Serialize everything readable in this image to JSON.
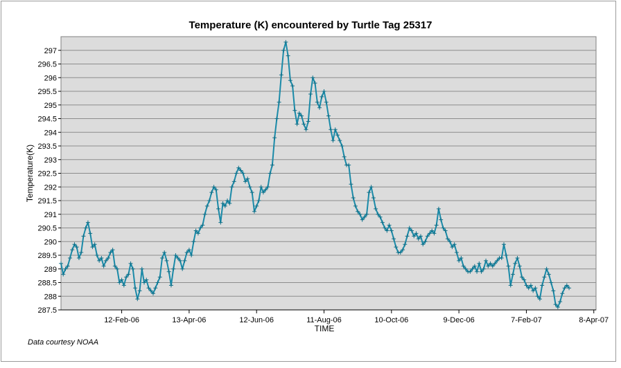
{
  "chart_data": {
    "type": "line",
    "title": "Temperature (K) encountered by Turtle Tag 25317",
    "xlabel": "TIME",
    "ylabel": "Temperature(K)",
    "credit": "Data courtesy NOAA",
    "ylim": [
      287.5,
      297.5
    ],
    "y_ticks": [
      "287.5",
      "288",
      "288.5",
      "289",
      "289.5",
      "290",
      "290.5",
      "291",
      "291.5",
      "292",
      "292.5",
      "293",
      "293.5",
      "294",
      "294.5",
      "295",
      "295.5",
      "296",
      "296.5",
      "297"
    ],
    "x_date_range": [
      "2005-12-20",
      "2007-04-10"
    ],
    "x_ticks": [
      {
        "date": "2006-02-12",
        "label": "12-Feb-06"
      },
      {
        "date": "2006-04-13",
        "label": "13-Apr-06"
      },
      {
        "date": "2006-06-12",
        "label": "12-Jun-06"
      },
      {
        "date": "2006-08-11",
        "label": "11-Aug-06"
      },
      {
        "date": "2006-10-10",
        "label": "10-Oct-06"
      },
      {
        "date": "2006-12-09",
        "label": "9-Dec-06"
      },
      {
        "date": "2007-02-07",
        "label": "7-Feb-07"
      },
      {
        "date": "2007-04-08",
        "label": "8-Apr-07"
      }
    ],
    "grid": true,
    "colors": {
      "line": "#1a8aa8",
      "plot_bg": "#dcdcdc",
      "grid": "#8c8c8c"
    },
    "series": [
      {
        "name": "Temperature",
        "marker": "plus",
        "points": [
          [
            "2005-12-20",
            289.2
          ],
          [
            "2005-12-22",
            288.8
          ],
          [
            "2005-12-24",
            289.0
          ],
          [
            "2005-12-26",
            289.1
          ],
          [
            "2005-12-28",
            289.4
          ],
          [
            "2005-12-30",
            289.7
          ],
          [
            "2006-01-01",
            289.9
          ],
          [
            "2006-01-03",
            289.8
          ],
          [
            "2006-01-05",
            289.4
          ],
          [
            "2006-01-07",
            289.6
          ],
          [
            "2006-01-09",
            290.2
          ],
          [
            "2006-01-11",
            290.5
          ],
          [
            "2006-01-13",
            290.7
          ],
          [
            "2006-01-15",
            290.3
          ],
          [
            "2006-01-17",
            289.8
          ],
          [
            "2006-01-19",
            289.9
          ],
          [
            "2006-01-21",
            289.5
          ],
          [
            "2006-01-23",
            289.3
          ],
          [
            "2006-01-25",
            289.4
          ],
          [
            "2006-01-27",
            289.1
          ],
          [
            "2006-01-29",
            289.3
          ],
          [
            "2006-01-31",
            289.4
          ],
          [
            "2006-02-02",
            289.6
          ],
          [
            "2006-02-04",
            289.7
          ],
          [
            "2006-02-06",
            289.1
          ],
          [
            "2006-02-08",
            289.0
          ],
          [
            "2006-02-10",
            288.5
          ],
          [
            "2006-02-12",
            288.6
          ],
          [
            "2006-02-14",
            288.4
          ],
          [
            "2006-02-16",
            288.7
          ],
          [
            "2006-02-18",
            288.8
          ],
          [
            "2006-02-20",
            289.2
          ],
          [
            "2006-02-22",
            289.0
          ],
          [
            "2006-02-24",
            288.3
          ],
          [
            "2006-02-26",
            287.9
          ],
          [
            "2006-02-28",
            288.2
          ],
          [
            "2006-03-02",
            289.0
          ],
          [
            "2006-03-04",
            288.5
          ],
          [
            "2006-03-06",
            288.6
          ],
          [
            "2006-03-08",
            288.3
          ],
          [
            "2006-03-10",
            288.2
          ],
          [
            "2006-03-12",
            288.1
          ],
          [
            "2006-03-14",
            288.3
          ],
          [
            "2006-03-16",
            288.5
          ],
          [
            "2006-03-18",
            288.7
          ],
          [
            "2006-03-20",
            289.4
          ],
          [
            "2006-03-22",
            289.6
          ],
          [
            "2006-03-24",
            289.3
          ],
          [
            "2006-03-26",
            288.9
          ],
          [
            "2006-03-28",
            288.4
          ],
          [
            "2006-03-30",
            289.0
          ],
          [
            "2006-04-01",
            289.5
          ],
          [
            "2006-04-03",
            289.4
          ],
          [
            "2006-04-05",
            289.3
          ],
          [
            "2006-04-07",
            289.0
          ],
          [
            "2006-04-09",
            289.3
          ],
          [
            "2006-04-11",
            289.6
          ],
          [
            "2006-04-13",
            289.7
          ],
          [
            "2006-04-15",
            289.5
          ],
          [
            "2006-04-17",
            290.0
          ],
          [
            "2006-04-19",
            290.4
          ],
          [
            "2006-04-21",
            290.3
          ],
          [
            "2006-04-23",
            290.5
          ],
          [
            "2006-04-25",
            290.6
          ],
          [
            "2006-04-27",
            291.0
          ],
          [
            "2006-04-29",
            291.3
          ],
          [
            "2006-05-01",
            291.5
          ],
          [
            "2006-05-03",
            291.8
          ],
          [
            "2006-05-05",
            292.0
          ],
          [
            "2006-05-07",
            291.9
          ],
          [
            "2006-05-09",
            291.2
          ],
          [
            "2006-05-11",
            290.7
          ],
          [
            "2006-05-13",
            291.4
          ],
          [
            "2006-05-15",
            291.3
          ],
          [
            "2006-05-17",
            291.5
          ],
          [
            "2006-05-19",
            291.4
          ],
          [
            "2006-05-21",
            292.0
          ],
          [
            "2006-05-23",
            292.2
          ],
          [
            "2006-05-25",
            292.5
          ],
          [
            "2006-05-27",
            292.7
          ],
          [
            "2006-05-29",
            292.6
          ],
          [
            "2006-05-31",
            292.5
          ],
          [
            "2006-06-02",
            292.2
          ],
          [
            "2006-06-04",
            292.3
          ],
          [
            "2006-06-06",
            292.0
          ],
          [
            "2006-06-08",
            291.8
          ],
          [
            "2006-06-10",
            291.1
          ],
          [
            "2006-06-12",
            291.3
          ],
          [
            "2006-06-14",
            291.5
          ],
          [
            "2006-06-16",
            292.0
          ],
          [
            "2006-06-18",
            291.8
          ],
          [
            "2006-06-20",
            291.9
          ],
          [
            "2006-06-22",
            292.0
          ],
          [
            "2006-06-24",
            292.5
          ],
          [
            "2006-06-26",
            292.8
          ],
          [
            "2006-06-28",
            293.8
          ],
          [
            "2006-06-30",
            294.5
          ],
          [
            "2006-07-02",
            295.1
          ],
          [
            "2006-07-04",
            296.1
          ],
          [
            "2006-07-06",
            297.0
          ],
          [
            "2006-07-08",
            297.3
          ],
          [
            "2006-07-10",
            296.8
          ],
          [
            "2006-07-12",
            295.9
          ],
          [
            "2006-07-14",
            295.7
          ],
          [
            "2006-07-16",
            294.8
          ],
          [
            "2006-07-18",
            294.3
          ],
          [
            "2006-07-20",
            294.7
          ],
          [
            "2006-07-22",
            294.6
          ],
          [
            "2006-07-24",
            294.3
          ],
          [
            "2006-07-26",
            294.1
          ],
          [
            "2006-07-28",
            294.4
          ],
          [
            "2006-07-30",
            295.4
          ],
          [
            "2006-08-01",
            296.0
          ],
          [
            "2006-08-03",
            295.8
          ],
          [
            "2006-08-05",
            295.1
          ],
          [
            "2006-08-07",
            294.9
          ],
          [
            "2006-08-09",
            295.3
          ],
          [
            "2006-08-11",
            295.5
          ],
          [
            "2006-08-13",
            295.1
          ],
          [
            "2006-08-15",
            294.6
          ],
          [
            "2006-08-17",
            294.1
          ],
          [
            "2006-08-19",
            293.7
          ],
          [
            "2006-08-21",
            294.1
          ],
          [
            "2006-08-23",
            293.9
          ],
          [
            "2006-08-25",
            293.7
          ],
          [
            "2006-08-27",
            293.5
          ],
          [
            "2006-08-29",
            293.1
          ],
          [
            "2006-08-31",
            292.8
          ],
          [
            "2006-09-02",
            292.8
          ],
          [
            "2006-09-04",
            292.1
          ],
          [
            "2006-09-06",
            291.6
          ],
          [
            "2006-09-08",
            291.3
          ],
          [
            "2006-09-10",
            291.1
          ],
          [
            "2006-09-12",
            291.0
          ],
          [
            "2006-09-14",
            290.8
          ],
          [
            "2006-09-16",
            290.9
          ],
          [
            "2006-09-18",
            291.0
          ],
          [
            "2006-09-20",
            291.8
          ],
          [
            "2006-09-22",
            292.0
          ],
          [
            "2006-09-24",
            291.6
          ],
          [
            "2006-09-26",
            291.2
          ],
          [
            "2006-09-28",
            291.0
          ],
          [
            "2006-09-30",
            290.9
          ],
          [
            "2006-10-02",
            290.7
          ],
          [
            "2006-10-04",
            290.5
          ],
          [
            "2006-10-06",
            290.4
          ],
          [
            "2006-10-08",
            290.6
          ],
          [
            "2006-10-10",
            290.4
          ],
          [
            "2006-10-12",
            290.1
          ],
          [
            "2006-10-14",
            289.8
          ],
          [
            "2006-10-16",
            289.6
          ],
          [
            "2006-10-18",
            289.6
          ],
          [
            "2006-10-20",
            289.7
          ],
          [
            "2006-10-22",
            289.9
          ],
          [
            "2006-10-24",
            290.2
          ],
          [
            "2006-10-26",
            290.5
          ],
          [
            "2006-10-28",
            290.4
          ],
          [
            "2006-10-30",
            290.2
          ],
          [
            "2006-11-01",
            290.3
          ],
          [
            "2006-11-03",
            290.1
          ],
          [
            "2006-11-05",
            290.2
          ],
          [
            "2006-11-07",
            289.9
          ],
          [
            "2006-11-09",
            290.0
          ],
          [
            "2006-11-11",
            290.2
          ],
          [
            "2006-11-13",
            290.3
          ],
          [
            "2006-11-15",
            290.4
          ],
          [
            "2006-11-17",
            290.3
          ],
          [
            "2006-11-19",
            290.6
          ],
          [
            "2006-11-21",
            291.2
          ],
          [
            "2006-11-23",
            290.8
          ],
          [
            "2006-11-25",
            290.5
          ],
          [
            "2006-11-27",
            290.4
          ],
          [
            "2006-11-29",
            290.1
          ],
          [
            "2006-12-01",
            290.0
          ],
          [
            "2006-12-03",
            289.8
          ],
          [
            "2006-12-05",
            289.9
          ],
          [
            "2006-12-07",
            289.6
          ],
          [
            "2006-12-09",
            289.3
          ],
          [
            "2006-12-11",
            289.4
          ],
          [
            "2006-12-13",
            289.1
          ],
          [
            "2006-12-15",
            289.0
          ],
          [
            "2006-12-17",
            288.9
          ],
          [
            "2006-12-19",
            288.9
          ],
          [
            "2006-12-21",
            289.0
          ],
          [
            "2006-12-23",
            289.1
          ],
          [
            "2006-12-25",
            288.9
          ],
          [
            "2006-12-27",
            289.2
          ],
          [
            "2006-12-29",
            288.9
          ],
          [
            "2006-12-31",
            289.0
          ],
          [
            "2007-01-02",
            289.3
          ],
          [
            "2007-01-04",
            289.1
          ],
          [
            "2007-01-06",
            289.2
          ],
          [
            "2007-01-08",
            289.1
          ],
          [
            "2007-01-10",
            289.2
          ],
          [
            "2007-01-12",
            289.3
          ],
          [
            "2007-01-14",
            289.4
          ],
          [
            "2007-01-16",
            289.4
          ],
          [
            "2007-01-18",
            289.9
          ],
          [
            "2007-01-20",
            289.5
          ],
          [
            "2007-01-22",
            289.1
          ],
          [
            "2007-01-24",
            288.4
          ],
          [
            "2007-01-26",
            288.8
          ],
          [
            "2007-01-28",
            289.2
          ],
          [
            "2007-01-30",
            289.4
          ],
          [
            "2007-02-01",
            289.1
          ],
          [
            "2007-02-03",
            288.7
          ],
          [
            "2007-02-05",
            288.6
          ],
          [
            "2007-02-07",
            288.4
          ],
          [
            "2007-02-09",
            288.3
          ],
          [
            "2007-02-11",
            288.4
          ],
          [
            "2007-02-13",
            288.2
          ],
          [
            "2007-02-15",
            288.3
          ],
          [
            "2007-02-17",
            288.0
          ],
          [
            "2007-02-19",
            287.9
          ],
          [
            "2007-02-21",
            288.4
          ],
          [
            "2007-02-23",
            288.7
          ],
          [
            "2007-02-25",
            289.0
          ],
          [
            "2007-02-27",
            288.8
          ],
          [
            "2007-03-01",
            288.5
          ],
          [
            "2007-03-03",
            288.2
          ],
          [
            "2007-03-05",
            287.7
          ],
          [
            "2007-03-07",
            287.6
          ],
          [
            "2007-03-09",
            287.8
          ],
          [
            "2007-03-11",
            288.1
          ],
          [
            "2007-03-13",
            288.3
          ],
          [
            "2007-03-15",
            288.4
          ],
          [
            "2007-03-17",
            288.3
          ]
        ]
      }
    ]
  }
}
